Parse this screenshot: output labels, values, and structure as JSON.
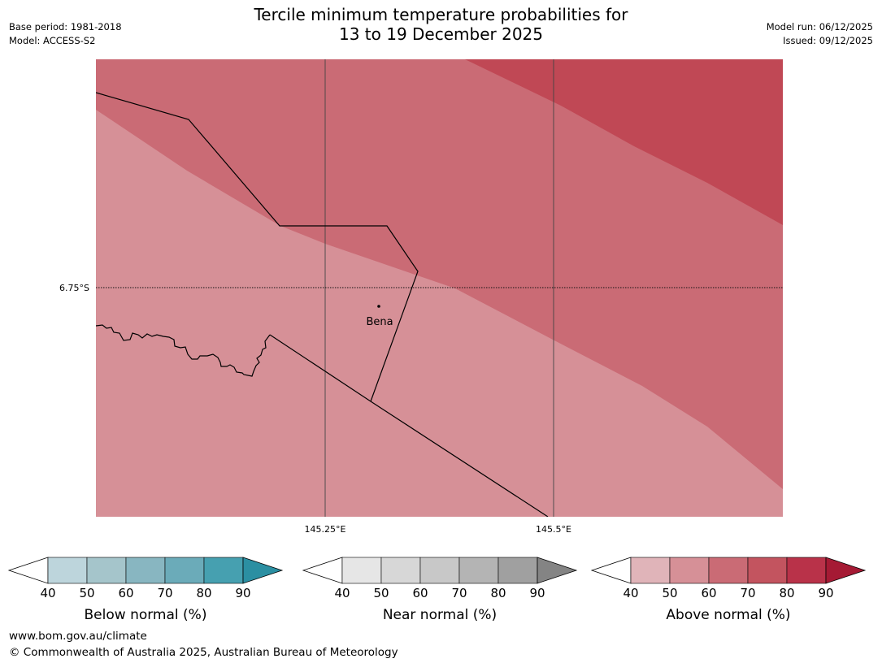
{
  "header": {
    "title_line1": "Tercile minimum temperature probabilities for",
    "title_line2": "13 to 19 December 2025",
    "base_period": "Base period: 1981-2018",
    "model": "Model: ACCESS-S2",
    "model_run": "Model run: 06/12/2025",
    "issued": "Issued: 09/12/2025"
  },
  "map": {
    "lat_label": "6.75°S",
    "lon_labels": [
      "145.25°E",
      "145.5°E"
    ],
    "place_label": "Bena",
    "zones": [
      {
        "name": "above-normal-50-60",
        "color": "#d69097"
      },
      {
        "name": "above-normal-60-70",
        "color": "#ca6b75"
      },
      {
        "name": "above-normal-70-80",
        "color": "#c04855"
      }
    ]
  },
  "colorbars": [
    {
      "name": "below-normal",
      "label": "Below normal (%)",
      "ticks": [
        "40",
        "50",
        "60",
        "70",
        "80",
        "90"
      ],
      "colors": [
        "#bdd5dc",
        "#a5c5cb",
        "#88b6c1",
        "#6babb9",
        "#46a0b0",
        "#2b8fa2"
      ]
    },
    {
      "name": "near-normal",
      "label": "Near normal (%)",
      "ticks": [
        "40",
        "50",
        "60",
        "70",
        "80",
        "90"
      ],
      "colors": [
        "#e6e6e6",
        "#d7d7d7",
        "#c8c8c8",
        "#b4b4b4",
        "#a0a0a0",
        "#848484"
      ]
    },
    {
      "name": "above-normal",
      "label": "Above normal (%)",
      "ticks": [
        "40",
        "50",
        "60",
        "70",
        "80",
        "90"
      ],
      "colors": [
        "#e0b4b9",
        "#d69097",
        "#ca6b75",
        "#c3545f",
        "#b93249",
        "#a51a34"
      ]
    }
  ],
  "footer": {
    "website": "www.bom.gov.au/climate",
    "copyright": "© Commonwealth of Australia 2025, Australian Bureau of Meteorology"
  }
}
